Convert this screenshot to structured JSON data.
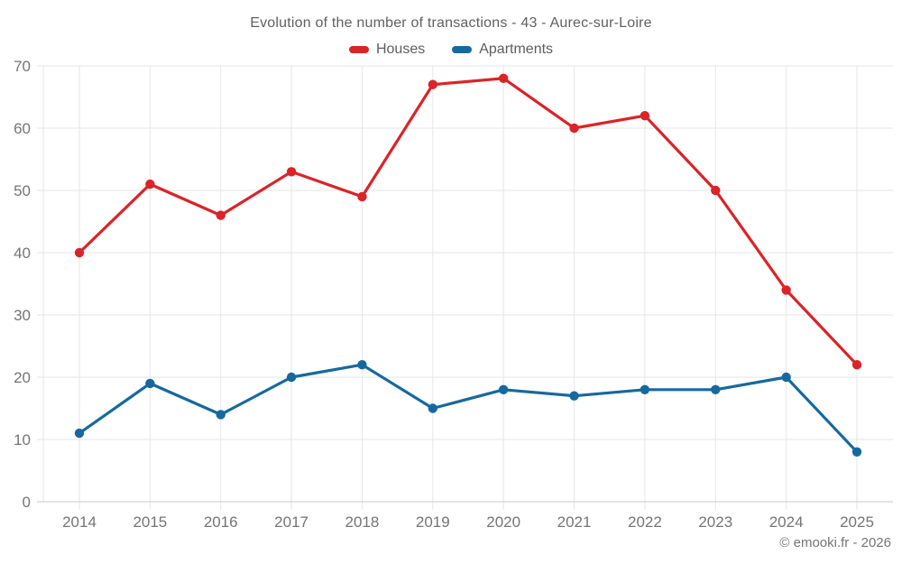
{
  "footer": "© emooki.fr - 2026",
  "theme": {
    "background": "#ffffff",
    "grid_color": "#e6e6e6",
    "axis_color": "#c9c9c9",
    "tick_label_color": "#757575",
    "title_color": "#616161",
    "footer_color": "#757575"
  },
  "chart_data": {
    "type": "line",
    "title": "Evolution of the number of transactions - 43 - Aurec-sur-Loire",
    "categories": [
      "2014",
      "2015",
      "2016",
      "2017",
      "2018",
      "2019",
      "2020",
      "2021",
      "2022",
      "2023",
      "2024",
      "2025"
    ],
    "series": [
      {
        "name": "Houses",
        "color": "#dc2327",
        "values": [
          40,
          51,
          46,
          53,
          49,
          67,
          68,
          60,
          62,
          50,
          34,
          22
        ]
      },
      {
        "name": "Apartments",
        "color": "#16699f",
        "values": [
          11,
          19,
          14,
          20,
          22,
          15,
          18,
          17,
          18,
          18,
          20,
          8
        ]
      }
    ],
    "xlabel": "",
    "ylabel": "",
    "ylim": [
      0,
      70
    ],
    "yticks": [
      0,
      10,
      20,
      30,
      40,
      50,
      60,
      70
    ],
    "grid": true,
    "legend_position": "top",
    "marker": "circle"
  }
}
